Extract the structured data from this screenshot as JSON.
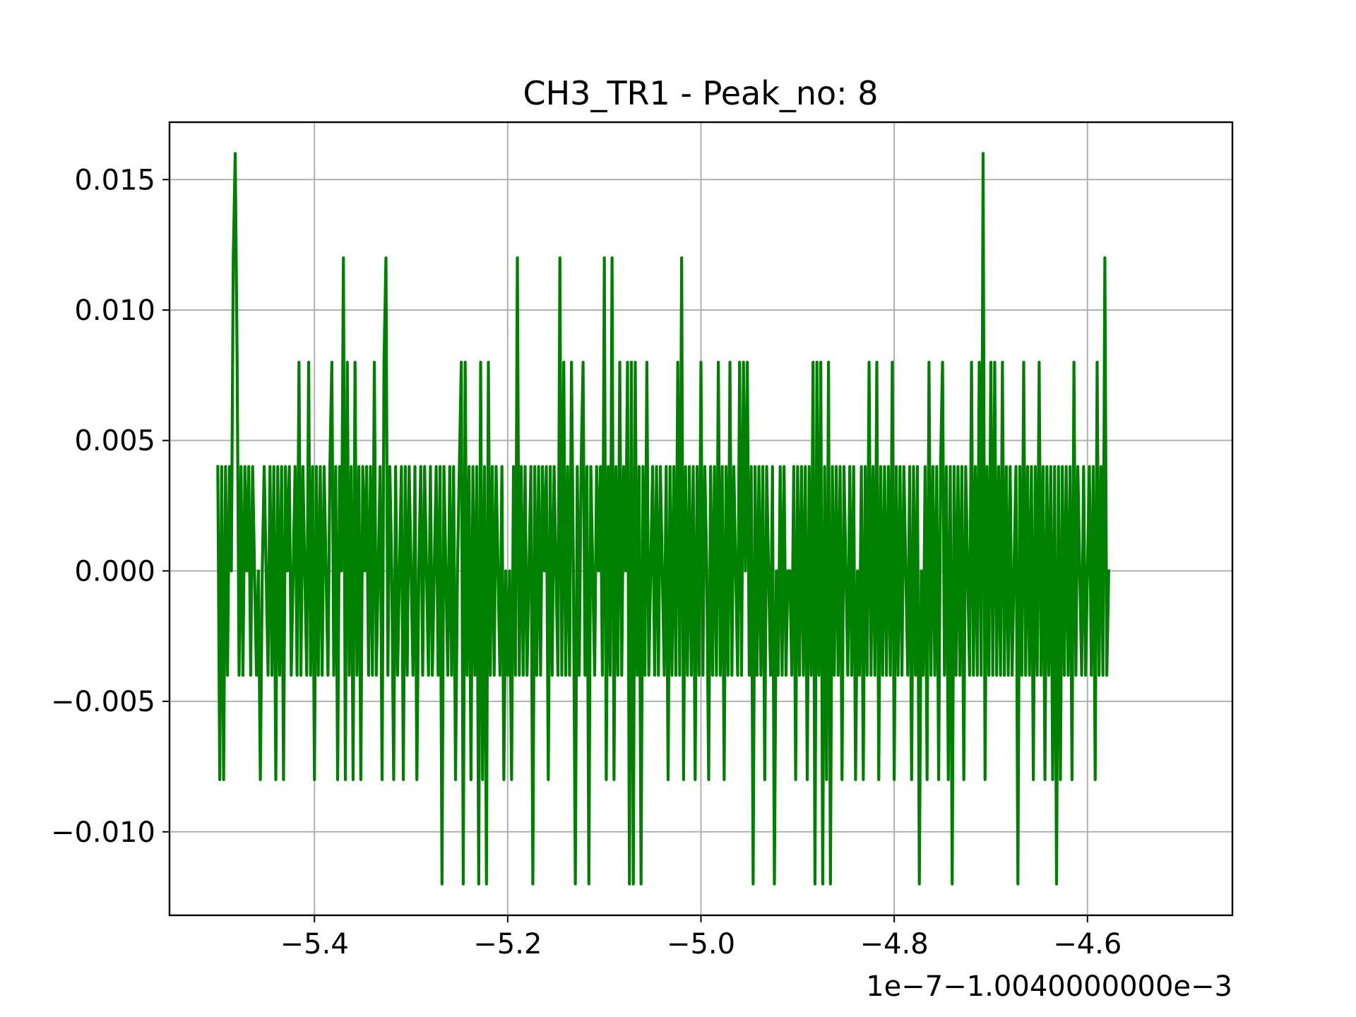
{
  "chart_data": {
    "type": "line",
    "title": "CH3_TR1 - Peak_no: 8",
    "xlabel": "",
    "ylabel": "",
    "x_offset_text": "1e−7−1.0040000000e−3",
    "xlim": [
      -5.55,
      -4.45
    ],
    "ylim": [
      -0.0132,
      0.0172
    ],
    "grid": true,
    "x_ticks": [
      -5.4,
      -5.2,
      -5.0,
      -4.8,
      -4.6
    ],
    "x_tick_labels": [
      "−5.4",
      "−5.2",
      "−5.0",
      "−4.8",
      "−4.6"
    ],
    "y_ticks": [
      -0.01,
      -0.005,
      0.0,
      0.005,
      0.01,
      0.015
    ],
    "y_tick_labels": [
      "−0.010",
      "−0.005",
      "0.000",
      "0.005",
      "0.010",
      "0.015"
    ],
    "series": [
      {
        "color": "#008000",
        "x_start": -5.5,
        "x_step": 0.002,
        "values": [
          0.004,
          -0.008,
          0.004,
          -0.008,
          0.004,
          -0.004,
          0.004,
          0.0,
          0.012,
          0.016,
          0.008,
          -0.004,
          0.004,
          -0.004,
          0.004,
          0.0,
          0.004,
          -0.004,
          0.004,
          0.0,
          -0.004,
          0.0,
          -0.008,
          0.0,
          0.004,
          0.0,
          -0.004,
          0.004,
          -0.004,
          0.004,
          -0.008,
          0.004,
          -0.004,
          0.004,
          -0.008,
          0.004,
          0.0,
          0.004,
          -0.004,
          0.0,
          0.004,
          -0.004,
          0.008,
          -0.004,
          0.004,
          0.0,
          -0.004,
          0.008,
          -0.004,
          0.004,
          -0.008,
          0.004,
          -0.004,
          0.004,
          -0.004,
          0.004,
          0.0,
          -0.004,
          0.004,
          0.008,
          -0.004,
          0.004,
          -0.008,
          0.004,
          0.0,
          0.012,
          -0.008,
          0.008,
          -0.004,
          0.004,
          -0.008,
          0.008,
          -0.004,
          0.004,
          -0.008,
          0.004,
          0.0,
          0.004,
          -0.004,
          0.004,
          -0.004,
          0.008,
          -0.004,
          0.0,
          0.004,
          -0.008,
          0.008,
          0.012,
          -0.004,
          0.004,
          0.0,
          -0.008,
          0.004,
          -0.004,
          0.0,
          0.004,
          -0.008,
          0.004,
          -0.004,
          0.004,
          0.0,
          -0.004,
          0.004,
          -0.008,
          0.0,
          0.004,
          -0.004,
          0.004,
          0.0,
          -0.004,
          0.004,
          -0.004,
          0.0,
          0.004,
          -0.004,
          0.004,
          -0.012,
          0.004,
          0.0,
          -0.004,
          0.004,
          -0.004,
          0.004,
          -0.008,
          0.0,
          0.004,
          0.008,
          -0.012,
          0.008,
          -0.004,
          0.004,
          -0.008,
          0.004,
          -0.004,
          0.004,
          -0.012,
          0.008,
          -0.008,
          0.004,
          -0.012,
          0.008,
          -0.004,
          0.004,
          -0.004,
          0.004,
          0.0,
          -0.004,
          0.004,
          -0.008,
          0.0,
          -0.004,
          0.0,
          -0.008,
          0.004,
          -0.004,
          0.012,
          -0.004,
          0.004,
          -0.004,
          0.004,
          -0.004,
          0.0,
          0.004,
          -0.012,
          0.004,
          -0.004,
          0.004,
          -0.004,
          0.004,
          0.0,
          0.004,
          -0.008,
          0.004,
          -0.004,
          0.004,
          0.0,
          -0.004,
          0.012,
          -0.004,
          0.008,
          -0.004,
          0.004,
          -0.004,
          0.008,
          0.0,
          -0.012,
          0.004,
          -0.004,
          0.004,
          0.008,
          -0.004,
          0.004,
          -0.012,
          0.004,
          0.0,
          -0.004,
          0.004,
          0.0,
          0.004,
          -0.004,
          0.012,
          -0.008,
          0.004,
          -0.004,
          0.012,
          -0.008,
          0.004,
          -0.004,
          0.008,
          -0.004,
          0.004,
          0.0,
          0.008,
          -0.012,
          0.008,
          -0.012,
          0.008,
          -0.004,
          0.004,
          -0.012,
          0.004,
          -0.004,
          0.008,
          -0.004,
          0.0,
          0.004,
          -0.004,
          0.004,
          -0.004,
          0.004,
          0.0,
          -0.004,
          0.004,
          -0.008,
          0.004,
          -0.004,
          0.004,
          -0.004,
          0.008,
          -0.004,
          0.012,
          -0.008,
          0.004,
          -0.004,
          0.004,
          -0.004,
          0.004,
          -0.008,
          0.004,
          -0.004,
          0.008,
          -0.004,
          0.004,
          0.0,
          -0.008,
          0.004,
          -0.004,
          0.004,
          -0.004,
          0.008,
          -0.004,
          0.004,
          -0.008,
          0.004,
          -0.004,
          0.008,
          -0.004,
          0.004,
          0.0,
          -0.004,
          0.008,
          -0.004,
          0.008,
          0.0,
          0.008,
          -0.004,
          0.004,
          -0.012,
          0.004,
          -0.004,
          0.004,
          -0.004,
          0.004,
          -0.008,
          0.004,
          0.0,
          -0.004,
          0.004,
          -0.012,
          0.0,
          -0.004,
          0.004,
          -0.004,
          0.004,
          -0.004,
          0.0,
          0.0,
          -0.004,
          0.004,
          -0.008,
          0.004,
          -0.004,
          0.004,
          -0.004,
          0.004,
          -0.008,
          0.004,
          -0.004,
          0.008,
          -0.012,
          0.008,
          -0.004,
          0.008,
          -0.012,
          0.004,
          -0.008,
          0.008,
          -0.012,
          0.004,
          -0.004,
          0.004,
          -0.004,
          0.004,
          -0.008,
          0.004,
          0.0,
          -0.004,
          0.004,
          -0.004,
          0.004,
          -0.008,
          0.0,
          -0.004,
          0.004,
          -0.008,
          0.004,
          -0.004,
          0.008,
          -0.004,
          0.004,
          -0.004,
          0.008,
          -0.008,
          0.004,
          -0.004,
          0.004,
          -0.004,
          0.004,
          -0.004,
          0.008,
          -0.008,
          0.004,
          -0.004,
          0.004,
          -0.004,
          0.004,
          0.0,
          -0.004,
          0.004,
          -0.008,
          0.004,
          -0.004,
          0.004,
          -0.012,
          0.0,
          -0.004,
          0.004,
          -0.008,
          0.008,
          -0.004,
          0.004,
          -0.004,
          0.004,
          -0.008,
          0.004,
          0.008,
          -0.004,
          0.004,
          -0.008,
          0.004,
          -0.012,
          0.004,
          -0.004,
          0.004,
          -0.004,
          0.004,
          -0.008,
          0.004,
          0.0,
          -0.004,
          0.008,
          -0.004,
          0.004,
          -0.004,
          0.008,
          -0.004,
          0.016,
          -0.008,
          0.004,
          -0.004,
          0.008,
          -0.004,
          0.008,
          -0.004,
          0.004,
          -0.004,
          0.008,
          -0.004,
          0.004,
          -0.004,
          0.004,
          -0.004,
          0.0,
          0.004,
          -0.012,
          0.004,
          -0.004,
          0.008,
          -0.004,
          0.004,
          -0.004,
          0.004,
          -0.008,
          0.004,
          -0.004,
          0.008,
          -0.004,
          0.004,
          -0.008,
          0.004,
          -0.004,
          0.004,
          -0.008,
          0.004,
          -0.012,
          0.004,
          -0.008,
          0.004,
          -0.004,
          0.004,
          -0.004,
          0.004,
          -0.008,
          0.008,
          -0.004,
          0.004,
          0.0,
          -0.004,
          0.004,
          -0.004,
          0.0,
          0.004,
          -0.004,
          0.004,
          -0.008,
          0.008,
          -0.004,
          0.004,
          -0.004,
          0.012,
          -0.004,
          0.0
        ]
      }
    ]
  }
}
